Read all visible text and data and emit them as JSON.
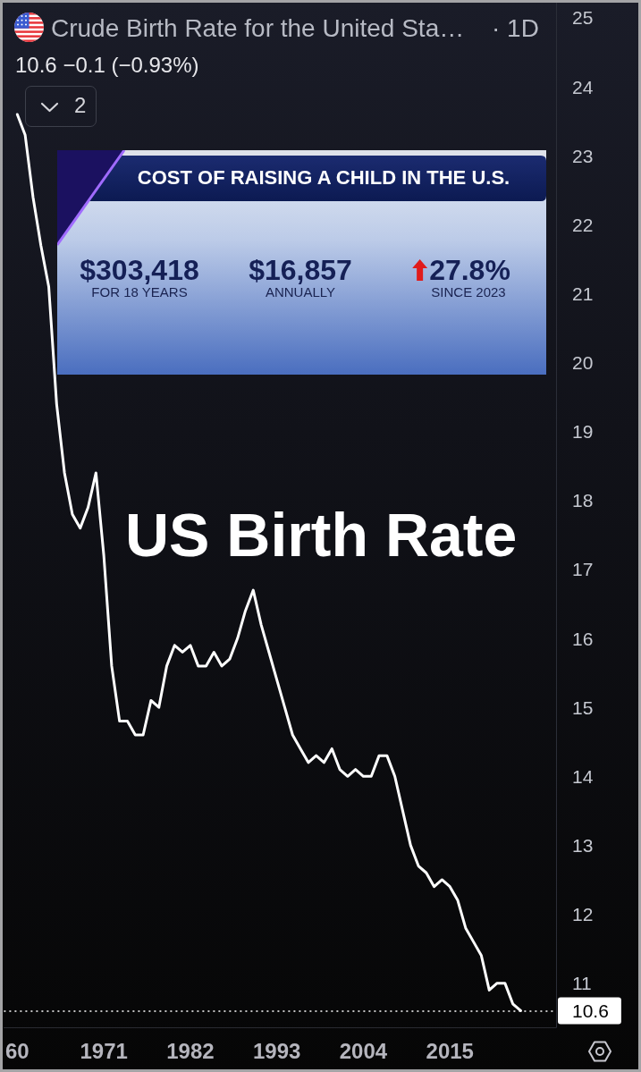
{
  "chart_data": {
    "type": "line",
    "title": "Crude Birth Rate for the United Sta…",
    "subtitle": "10.6 −0.1 (−0.93%)",
    "annotations": [
      "· 1D",
      "2",
      "US Birth Rate",
      "COST OF RAISING A CHILD IN THE U.S.",
      "$303,418",
      "FOR 18 YEARS",
      "$16,857",
      "ANNUALLY",
      "27.8%",
      "SINCE 2023"
    ],
    "x": [
      1960,
      1961,
      1962,
      1963,
      1964,
      1965,
      1966,
      1967,
      1968,
      1969,
      1970,
      1971,
      1972,
      1973,
      1974,
      1975,
      1976,
      1977,
      1978,
      1979,
      1980,
      1981,
      1982,
      1983,
      1984,
      1985,
      1986,
      1987,
      1988,
      1989,
      1990,
      1991,
      1992,
      1993,
      1994,
      1995,
      1996,
      1997,
      1998,
      1999,
      2000,
      2001,
      2002,
      2003,
      2004,
      2005,
      2006,
      2007,
      2008,
      2009,
      2010,
      2011,
      2012,
      2013,
      2014,
      2015,
      2016,
      2017,
      2018,
      2019,
      2020,
      2021,
      2022,
      2023,
      2024
    ],
    "series": [
      {
        "color": "#ffffff",
        "values": [
          23.6,
          23.3,
          22.4,
          21.7,
          21.1,
          19.4,
          18.4,
          17.8,
          17.6,
          17.9,
          18.4,
          17.2,
          15.6,
          14.8,
          14.8,
          14.6,
          14.6,
          15.1,
          15.0,
          15.6,
          15.9,
          15.8,
          15.9,
          15.6,
          15.6,
          15.8,
          15.6,
          15.7,
          16.0,
          16.4,
          16.7,
          16.2,
          15.8,
          15.4,
          15.0,
          14.6,
          14.4,
          14.2,
          14.3,
          14.2,
          14.4,
          14.1,
          14.0,
          14.1,
          14.0,
          14.0,
          14.3,
          14.3,
          14.0,
          13.5,
          13.0,
          12.7,
          12.6,
          12.4,
          12.5,
          12.4,
          12.2,
          11.8,
          11.6,
          11.4,
          10.9,
          11.0,
          11.0,
          10.7,
          10.6
        ]
      }
    ],
    "xlim": [
      1958.3,
      2028.5
    ],
    "xticks": [
      {
        "value": 1960,
        "label": "60"
      },
      1971,
      1982,
      1993,
      2004,
      2015
    ],
    "ylim": [
      10.36,
      25.22
    ],
    "yticks": [
      11,
      12,
      13,
      14,
      15,
      16,
      17,
      18,
      19,
      20,
      21,
      22,
      23,
      24,
      25
    ],
    "ref_lines": [
      {
        "axis": "y",
        "value": 10.6,
        "label": "10.6",
        "color": "#ffffff",
        "line_style": "dotted"
      }
    ],
    "grid": false,
    "marker": "none",
    "line_style": "solid"
  }
}
